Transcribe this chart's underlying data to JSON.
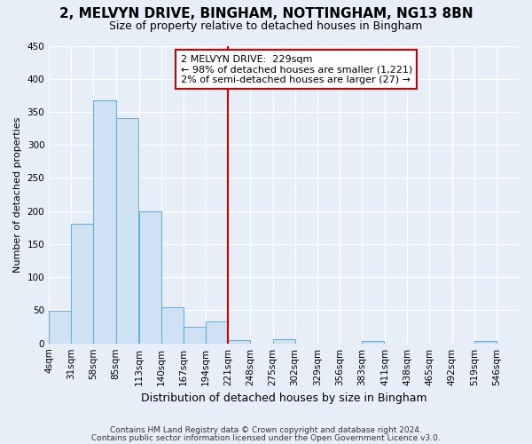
{
  "title1": "2, MELVYN DRIVE, BINGHAM, NOTTINGHAM, NG13 8BN",
  "title2": "Size of property relative to detached houses in Bingham",
  "xlabel": "Distribution of detached houses by size in Bingham",
  "ylabel": "Number of detached properties",
  "bar_left_edges": [
    4,
    31,
    58,
    85,
    113,
    140,
    167,
    194,
    221,
    248,
    275,
    302,
    329,
    356,
    383,
    411,
    438,
    465,
    492,
    519
  ],
  "bar_heights": [
    49,
    181,
    367,
    340,
    200,
    55,
    25,
    33,
    5,
    0,
    6,
    0,
    0,
    0,
    4,
    0,
    0,
    0,
    0,
    3
  ],
  "bin_width": 27,
  "bar_color": "#cfe2f3",
  "bar_edge_color": "#6baed6",
  "vline_x": 221,
  "vline_color": "#cc0000",
  "annotation_title": "2 MELVYN DRIVE:  229sqm",
  "annotation_line1": "← 98% of detached houses are smaller (1,221)",
  "annotation_line2": "2% of semi-detached houses are larger (27) →",
  "annotation_box_color": "white",
  "annotation_box_edge": "#cc0000",
  "ylim": [
    0,
    450
  ],
  "yticks": [
    0,
    50,
    100,
    150,
    200,
    250,
    300,
    350,
    400,
    450
  ],
  "xtick_labels": [
    "4sqm",
    "31sqm",
    "58sqm",
    "85sqm",
    "113sqm",
    "140sqm",
    "167sqm",
    "194sqm",
    "221sqm",
    "248sqm",
    "275sqm",
    "302sqm",
    "329sqm",
    "356sqm",
    "383sqm",
    "411sqm",
    "438sqm",
    "465sqm",
    "492sqm",
    "519sqm",
    "546sqm"
  ],
  "xtick_positions": [
    4,
    31,
    58,
    85,
    113,
    140,
    167,
    194,
    221,
    248,
    275,
    302,
    329,
    356,
    383,
    411,
    438,
    465,
    492,
    519,
    546
  ],
  "footer1": "Contains HM Land Registry data © Crown copyright and database right 2024.",
  "footer2": "Contains public sector information licensed under the Open Government Licence v3.0.",
  "bg_color": "#e8eef8",
  "plot_bg_color": "#e8eef8",
  "grid_color": "#ffffff",
  "title1_fontsize": 11,
  "title2_fontsize": 9,
  "xlabel_fontsize": 9,
  "ylabel_fontsize": 8,
  "tick_fontsize": 7.5,
  "footer_fontsize": 6.5
}
